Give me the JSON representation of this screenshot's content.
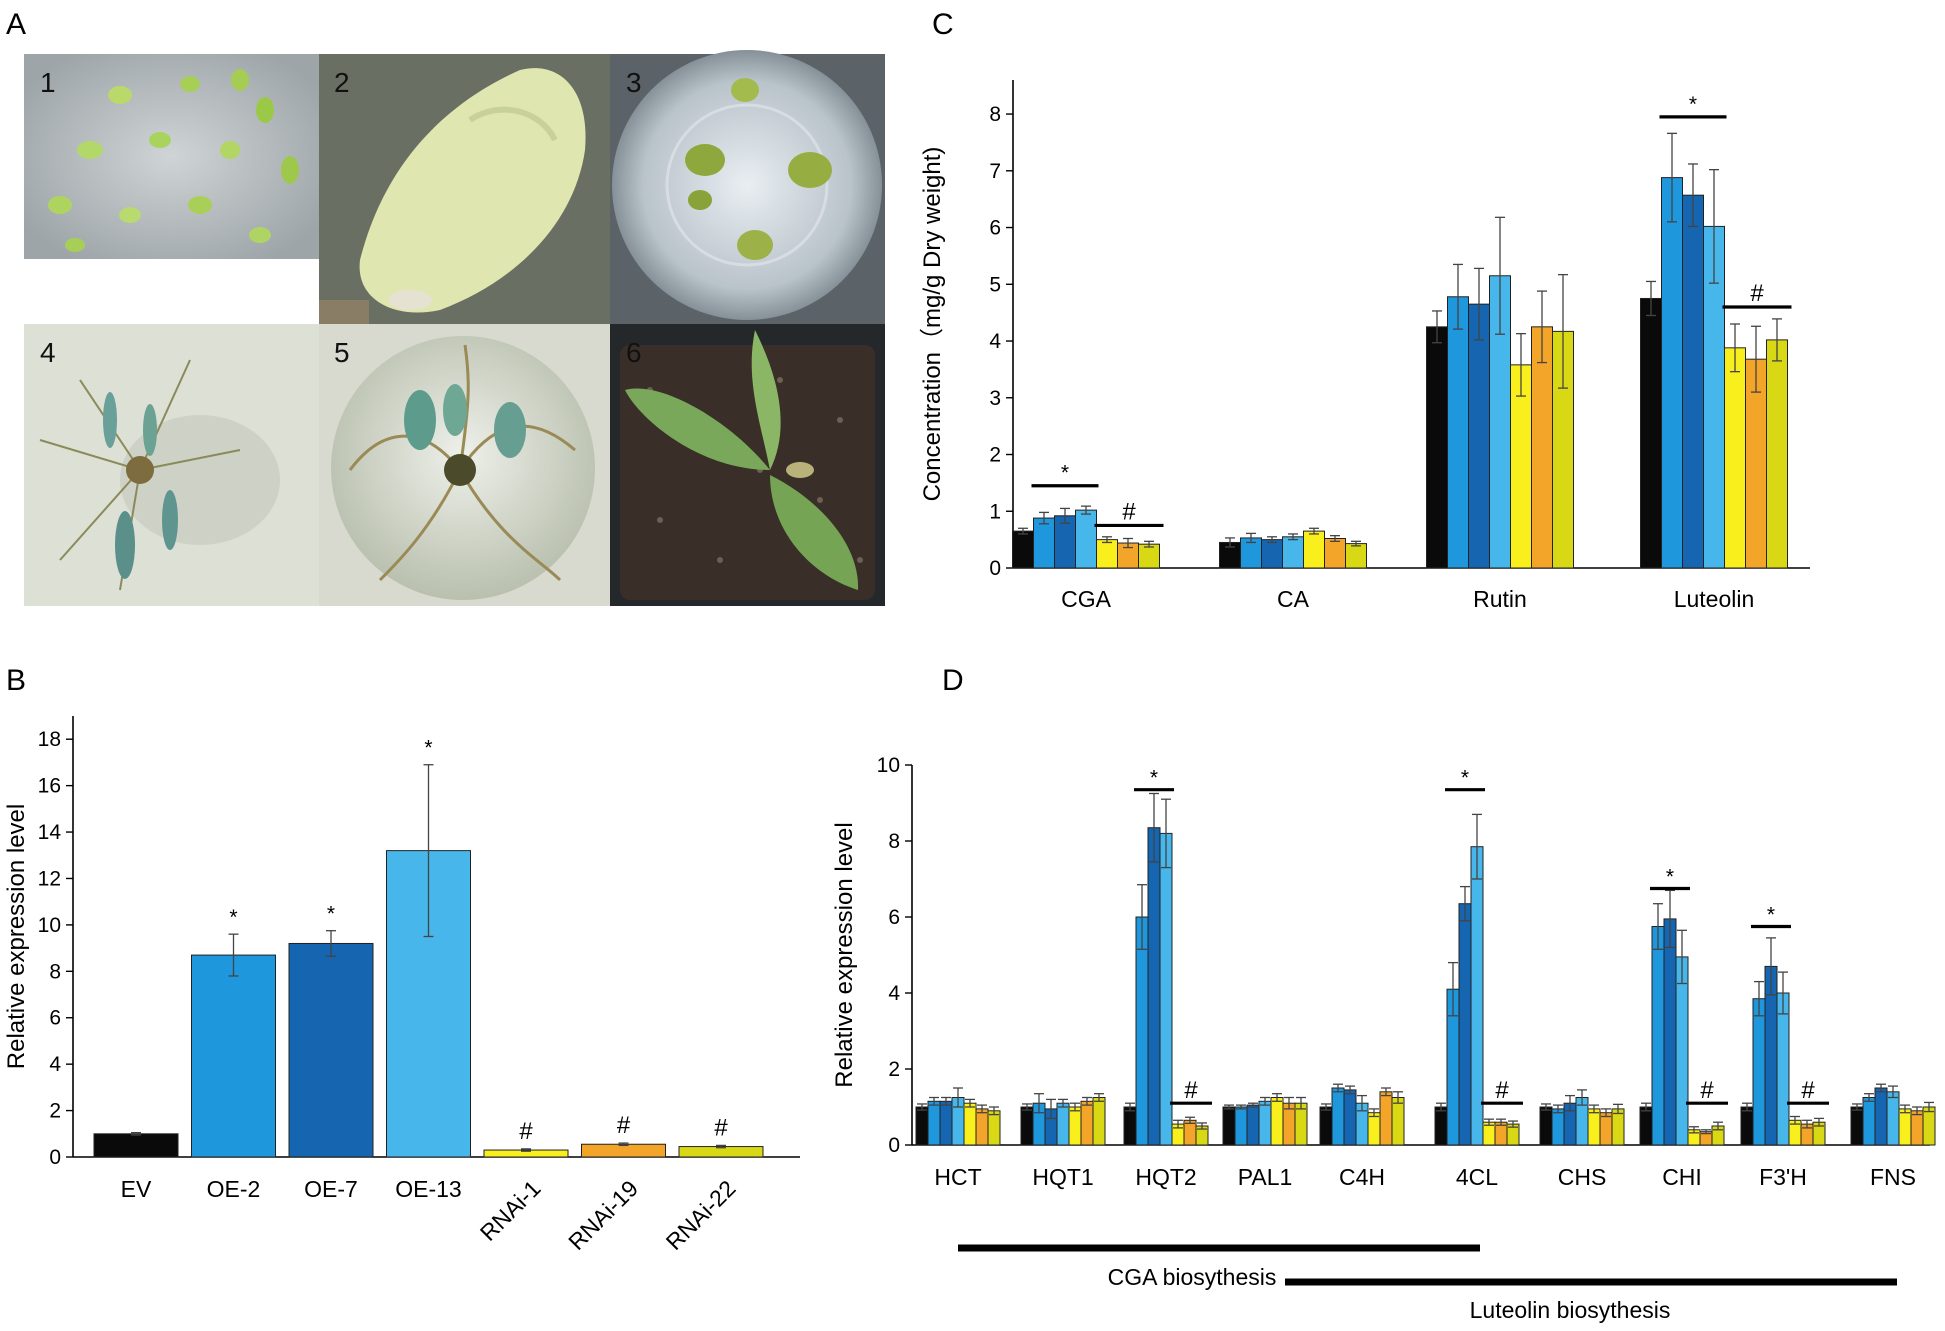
{
  "figure": {
    "panel_labels": [
      "A",
      "B",
      "C",
      "D"
    ],
    "photos": [
      {
        "number": "1",
        "subject": "leaf explants on plate"
      },
      {
        "number": "2",
        "subject": "callus on leaf disc"
      },
      {
        "number": "3",
        "subject": "regenerating shoots in dish"
      },
      {
        "number": "4",
        "subject": "rooting plantlet"
      },
      {
        "number": "5",
        "subject": "plantlet with roots in jar"
      },
      {
        "number": "6",
        "subject": "seedling in soil pot"
      }
    ],
    "bottom_labels": {
      "cga": "CGA biosythesis",
      "luteolin": "Luteolin biosythesis"
    }
  },
  "colors": {
    "EV": "#0a0a0a",
    "OE-2": "#1f97dc",
    "OE-7": "#1565b0",
    "OE-13": "#47b6ea",
    "RNAi-1": "#f9ef1c",
    "RNAi-19": "#f3a52a",
    "RNAi-22": "#d8d814"
  },
  "chart_data": [
    {
      "panel": "B",
      "type": "bar",
      "categories": [
        "EV",
        "OE-2",
        "OE-7",
        "OE-13",
        "RNAi-1",
        "RNAi-19",
        "RNAi-22"
      ],
      "values": [
        1.0,
        8.7,
        9.2,
        13.2,
        0.3,
        0.55,
        0.45
      ],
      "errors": [
        0.05,
        0.9,
        0.55,
        3.7,
        0.05,
        0.05,
        0.05
      ],
      "markers": [
        "",
        "*",
        "*",
        "*",
        "#",
        "#",
        "#"
      ],
      "ylabel": "Relative expression level",
      "xlabel": "",
      "ylim": [
        0,
        19
      ],
      "yticks": [
        0,
        2,
        4,
        6,
        8,
        10,
        12,
        14,
        16,
        18
      ]
    },
    {
      "panel": "C",
      "type": "bar",
      "categories": [
        "CGA",
        "CA",
        "Rutin",
        "Luteolin"
      ],
      "series": [
        {
          "name": "EV",
          "values": [
            0.65,
            0.45,
            4.25,
            4.75
          ],
          "errors": [
            0.05,
            0.08,
            0.28,
            0.3
          ]
        },
        {
          "name": "OE-2",
          "values": [
            0.88,
            0.53,
            4.78,
            6.88
          ],
          "errors": [
            0.1,
            0.08,
            0.57,
            0.78
          ]
        },
        {
          "name": "OE-7",
          "values": [
            0.92,
            0.5,
            4.65,
            6.57
          ],
          "errors": [
            0.13,
            0.05,
            0.63,
            0.55
          ]
        },
        {
          "name": "OE-13",
          "values": [
            1.02,
            0.55,
            5.15,
            6.02
          ],
          "errors": [
            0.07,
            0.05,
            1.03,
            1.0
          ]
        },
        {
          "name": "RNAi-1",
          "values": [
            0.5,
            0.65,
            3.58,
            3.88
          ],
          "errors": [
            0.05,
            0.05,
            0.55,
            0.42
          ]
        },
        {
          "name": "RNAi-19",
          "values": [
            0.44,
            0.52,
            4.25,
            3.68
          ],
          "errors": [
            0.08,
            0.05,
            0.63,
            0.58
          ]
        },
        {
          "name": "RNAi-22",
          "values": [
            0.42,
            0.43,
            4.17,
            4.02
          ],
          "errors": [
            0.05,
            0.04,
            1.0,
            0.37
          ]
        }
      ],
      "significance": [
        {
          "category": "CGA",
          "group": "OE",
          "marker": "*",
          "y": 1.45
        },
        {
          "category": "CGA",
          "group": "RNAi",
          "marker": "#",
          "y": 0.75
        },
        {
          "category": "Luteolin",
          "group": "OE",
          "marker": "*",
          "y": 7.95
        },
        {
          "category": "Luteolin",
          "group": "RNAi",
          "marker": "#",
          "y": 4.6
        }
      ],
      "ylabel": "Concentration（mg/g Dry weight)",
      "xlabel": "",
      "ylim": [
        0,
        8.6
      ],
      "yticks": [
        0,
        1,
        2,
        3,
        4,
        5,
        6,
        7,
        8
      ]
    },
    {
      "panel": "D",
      "type": "bar",
      "categories": [
        "HCT",
        "HQT1",
        "HQT2",
        "PAL1",
        "C4H",
        "4CL",
        "CHS",
        "CHI",
        "F3'H",
        "FNS"
      ],
      "series": [
        {
          "name": "EV",
          "values": [
            1.0,
            1.0,
            1.0,
            1.0,
            1.0,
            1.0,
            1.0,
            1.0,
            1.0,
            1.0
          ],
          "errors": [
            0.08,
            0.08,
            0.1,
            0.05,
            0.08,
            0.1,
            0.08,
            0.1,
            0.1,
            0.08
          ]
        },
        {
          "name": "OE-2",
          "values": [
            1.15,
            1.1,
            6.0,
            1.0,
            1.5,
            4.1,
            0.95,
            5.75,
            3.85,
            1.25
          ],
          "errors": [
            0.1,
            0.25,
            0.85,
            0.05,
            0.1,
            0.7,
            0.1,
            0.6,
            0.45,
            0.1
          ]
        },
        {
          "name": "OE-7",
          "values": [
            1.15,
            0.95,
            8.35,
            1.05,
            1.45,
            6.35,
            1.1,
            5.95,
            4.7,
            1.5
          ],
          "errors": [
            0.1,
            0.25,
            0.9,
            0.05,
            0.1,
            0.45,
            0.2,
            0.75,
            0.75,
            0.1
          ]
        },
        {
          "name": "OE-13",
          "values": [
            1.25,
            1.1,
            8.2,
            1.15,
            1.1,
            7.85,
            1.25,
            4.95,
            4.0,
            1.4
          ],
          "errors": [
            0.25,
            0.1,
            0.9,
            0.1,
            0.2,
            0.85,
            0.2,
            0.7,
            0.55,
            0.15
          ]
        },
        {
          "name": "RNAi-1",
          "values": [
            1.1,
            1.0,
            0.55,
            1.25,
            0.85,
            0.6,
            0.95,
            0.4,
            0.65,
            0.95
          ],
          "errors": [
            0.1,
            0.1,
            0.1,
            0.1,
            0.1,
            0.08,
            0.1,
            0.08,
            0.1,
            0.1
          ]
        },
        {
          "name": "RNAi-19",
          "values": [
            0.95,
            1.15,
            0.65,
            1.1,
            1.4,
            0.6,
            0.85,
            0.35,
            0.55,
            0.9
          ],
          "errors": [
            0.1,
            0.1,
            0.08,
            0.15,
            0.1,
            0.08,
            0.1,
            0.05,
            0.1,
            0.1
          ]
        },
        {
          "name": "RNAi-22",
          "values": [
            0.9,
            1.25,
            0.5,
            1.1,
            1.25,
            0.55,
            0.95,
            0.5,
            0.6,
            1.0
          ],
          "errors": [
            0.1,
            0.1,
            0.08,
            0.15,
            0.15,
            0.08,
            0.12,
            0.1,
            0.1,
            0.12
          ]
        }
      ],
      "significance": [
        {
          "category": "HQT2",
          "group": "OE",
          "marker": "*",
          "y": 9.35
        },
        {
          "category": "HQT2",
          "group": "RNAi",
          "marker": "#",
          "y": 1.1
        },
        {
          "category": "4CL",
          "group": "OE",
          "marker": "*",
          "y": 9.35
        },
        {
          "category": "4CL",
          "group": "RNAi",
          "marker": "#",
          "y": 1.1
        },
        {
          "category": "CHI",
          "group": "OE",
          "marker": "*",
          "y": 6.75
        },
        {
          "category": "CHI",
          "group": "RNAi",
          "marker": "#",
          "y": 1.1
        },
        {
          "category": "F3'H",
          "group": "OE",
          "marker": "*",
          "y": 5.75
        },
        {
          "category": "F3'H",
          "group": "RNAi",
          "marker": "#",
          "y": 1.1
        }
      ],
      "ylabel": "Relative expression level",
      "xlabel": "",
      "ylim": [
        0,
        10
      ],
      "yticks": [
        0,
        2,
        4,
        6,
        8,
        10
      ]
    }
  ]
}
